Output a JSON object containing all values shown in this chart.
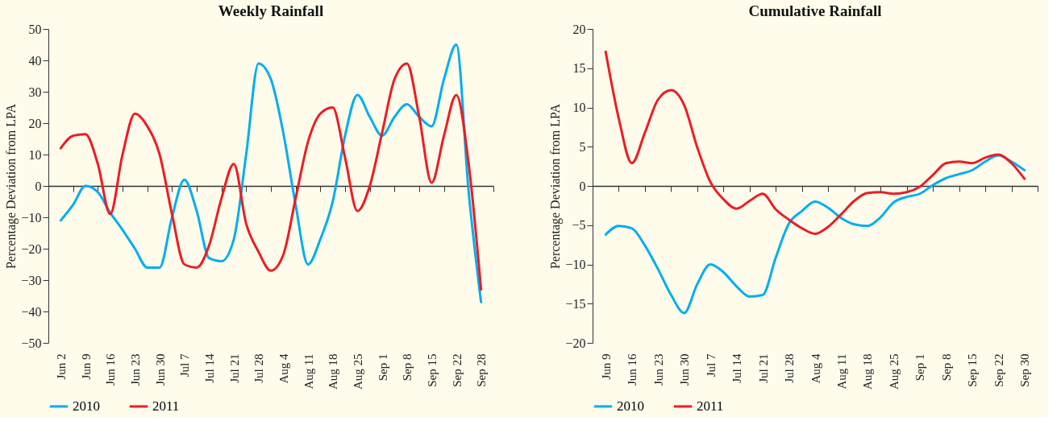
{
  "chart_data": [
    {
      "type": "line",
      "title": "Weekly Rainfall",
      "ylabel": "Percentage Deviation from LPA",
      "categories": [
        "Jun 2",
        null,
        "Jun 9",
        null,
        "Jun 16",
        null,
        "Jun 23",
        null,
        "Jun 30",
        null,
        "Jul 7",
        null,
        "Jul 14",
        null,
        "Jul 21",
        null,
        "Jul 28",
        null,
        "Aug 4",
        null,
        "Aug 11",
        null,
        "Aug 18",
        null,
        "Aug 25",
        null,
        "Sep 1",
        null,
        "Sep 8",
        null,
        "Sep 15",
        null,
        "Sep 22",
        null,
        "Sep 28"
      ],
      "series": [
        {
          "name": "2010",
          "color": "#00aeef",
          "values": [
            -11,
            -6,
            0,
            -2,
            -8.5,
            -14,
            -20,
            -26,
            -26,
            -10,
            2,
            -8,
            -23,
            -24,
            -17,
            10,
            39,
            34,
            17,
            -6,
            -25,
            -17,
            -5,
            16,
            29,
            22,
            16,
            22,
            26,
            22,
            19,
            34,
            45,
            -2,
            -37
          ]
        },
        {
          "name": "2011",
          "color": "#ed1c24",
          "values": [
            12,
            16,
            16.5,
            7,
            -9,
            10,
            23,
            19,
            10,
            -9,
            -25,
            -26,
            -19,
            -4,
            7,
            -12,
            -21,
            -27,
            -22,
            -4,
            14,
            23,
            25,
            9,
            -8,
            0,
            17,
            34,
            39,
            22,
            1,
            16,
            29,
            7,
            -33
          ]
        }
      ],
      "ylim": [
        -50,
        50
      ],
      "yticks": [
        -50,
        -40,
        -30,
        -20,
        -10,
        0,
        10,
        20,
        30,
        40,
        50
      ],
      "legend": "bottom",
      "line_style": "solid"
    },
    {
      "type": "line",
      "title": "Cumulative Rainfall",
      "ylabel": "Percentage Deviation from LPA",
      "categories": [
        "Jun 9",
        null,
        "Jun 16",
        null,
        "Jun 23",
        null,
        "Jun 30",
        null,
        "Jul 7",
        null,
        "Jul 14",
        null,
        "Jul 21",
        null,
        "Jul 28",
        null,
        "Aug 4",
        null,
        "Aug 11",
        null,
        "Aug 18",
        null,
        "Aug 25",
        null,
        "Sep 1",
        null,
        "Sep 8",
        null,
        "Sep 15",
        null,
        "Sep 22",
        null,
        "Sep 30"
      ],
      "series": [
        {
          "name": "2010",
          "color": "#00aeef",
          "values": [
            -6.2,
            -5.1,
            -5.4,
            -7.6,
            -10.6,
            -13.9,
            -16.2,
            -12.5,
            -10,
            -11,
            -12.8,
            -14.1,
            -13.9,
            -9.1,
            -4.8,
            -3.2,
            -2,
            -2.8,
            -4.1,
            -4.9,
            -5.1,
            -4,
            -2.1,
            -1.4,
            -1,
            0.1,
            1,
            1.5,
            2,
            3.1,
            3.9,
            3.1,
            2
          ]
        },
        {
          "name": "2011",
          "color": "#ed1c24",
          "values": [
            17.1,
            8.6,
            2.9,
            6.8,
            11,
            12.2,
            10.3,
            4.9,
            0.5,
            -1.7,
            -2.9,
            -1.9,
            -1,
            -3,
            -4.3,
            -5.4,
            -6.1,
            -5.2,
            -3.6,
            -1.9,
            -0.9,
            -0.8,
            -1,
            -0.8,
            -0.1,
            1.4,
            2.9,
            3.1,
            2.9,
            3.6,
            4,
            2.9,
            0.9
          ]
        }
      ],
      "ylim": [
        -20,
        20
      ],
      "yticks": [
        -20,
        -15,
        -10,
        -5,
        0,
        5,
        10,
        15,
        20
      ],
      "legend": "bottom",
      "line_style": "solid"
    }
  ]
}
